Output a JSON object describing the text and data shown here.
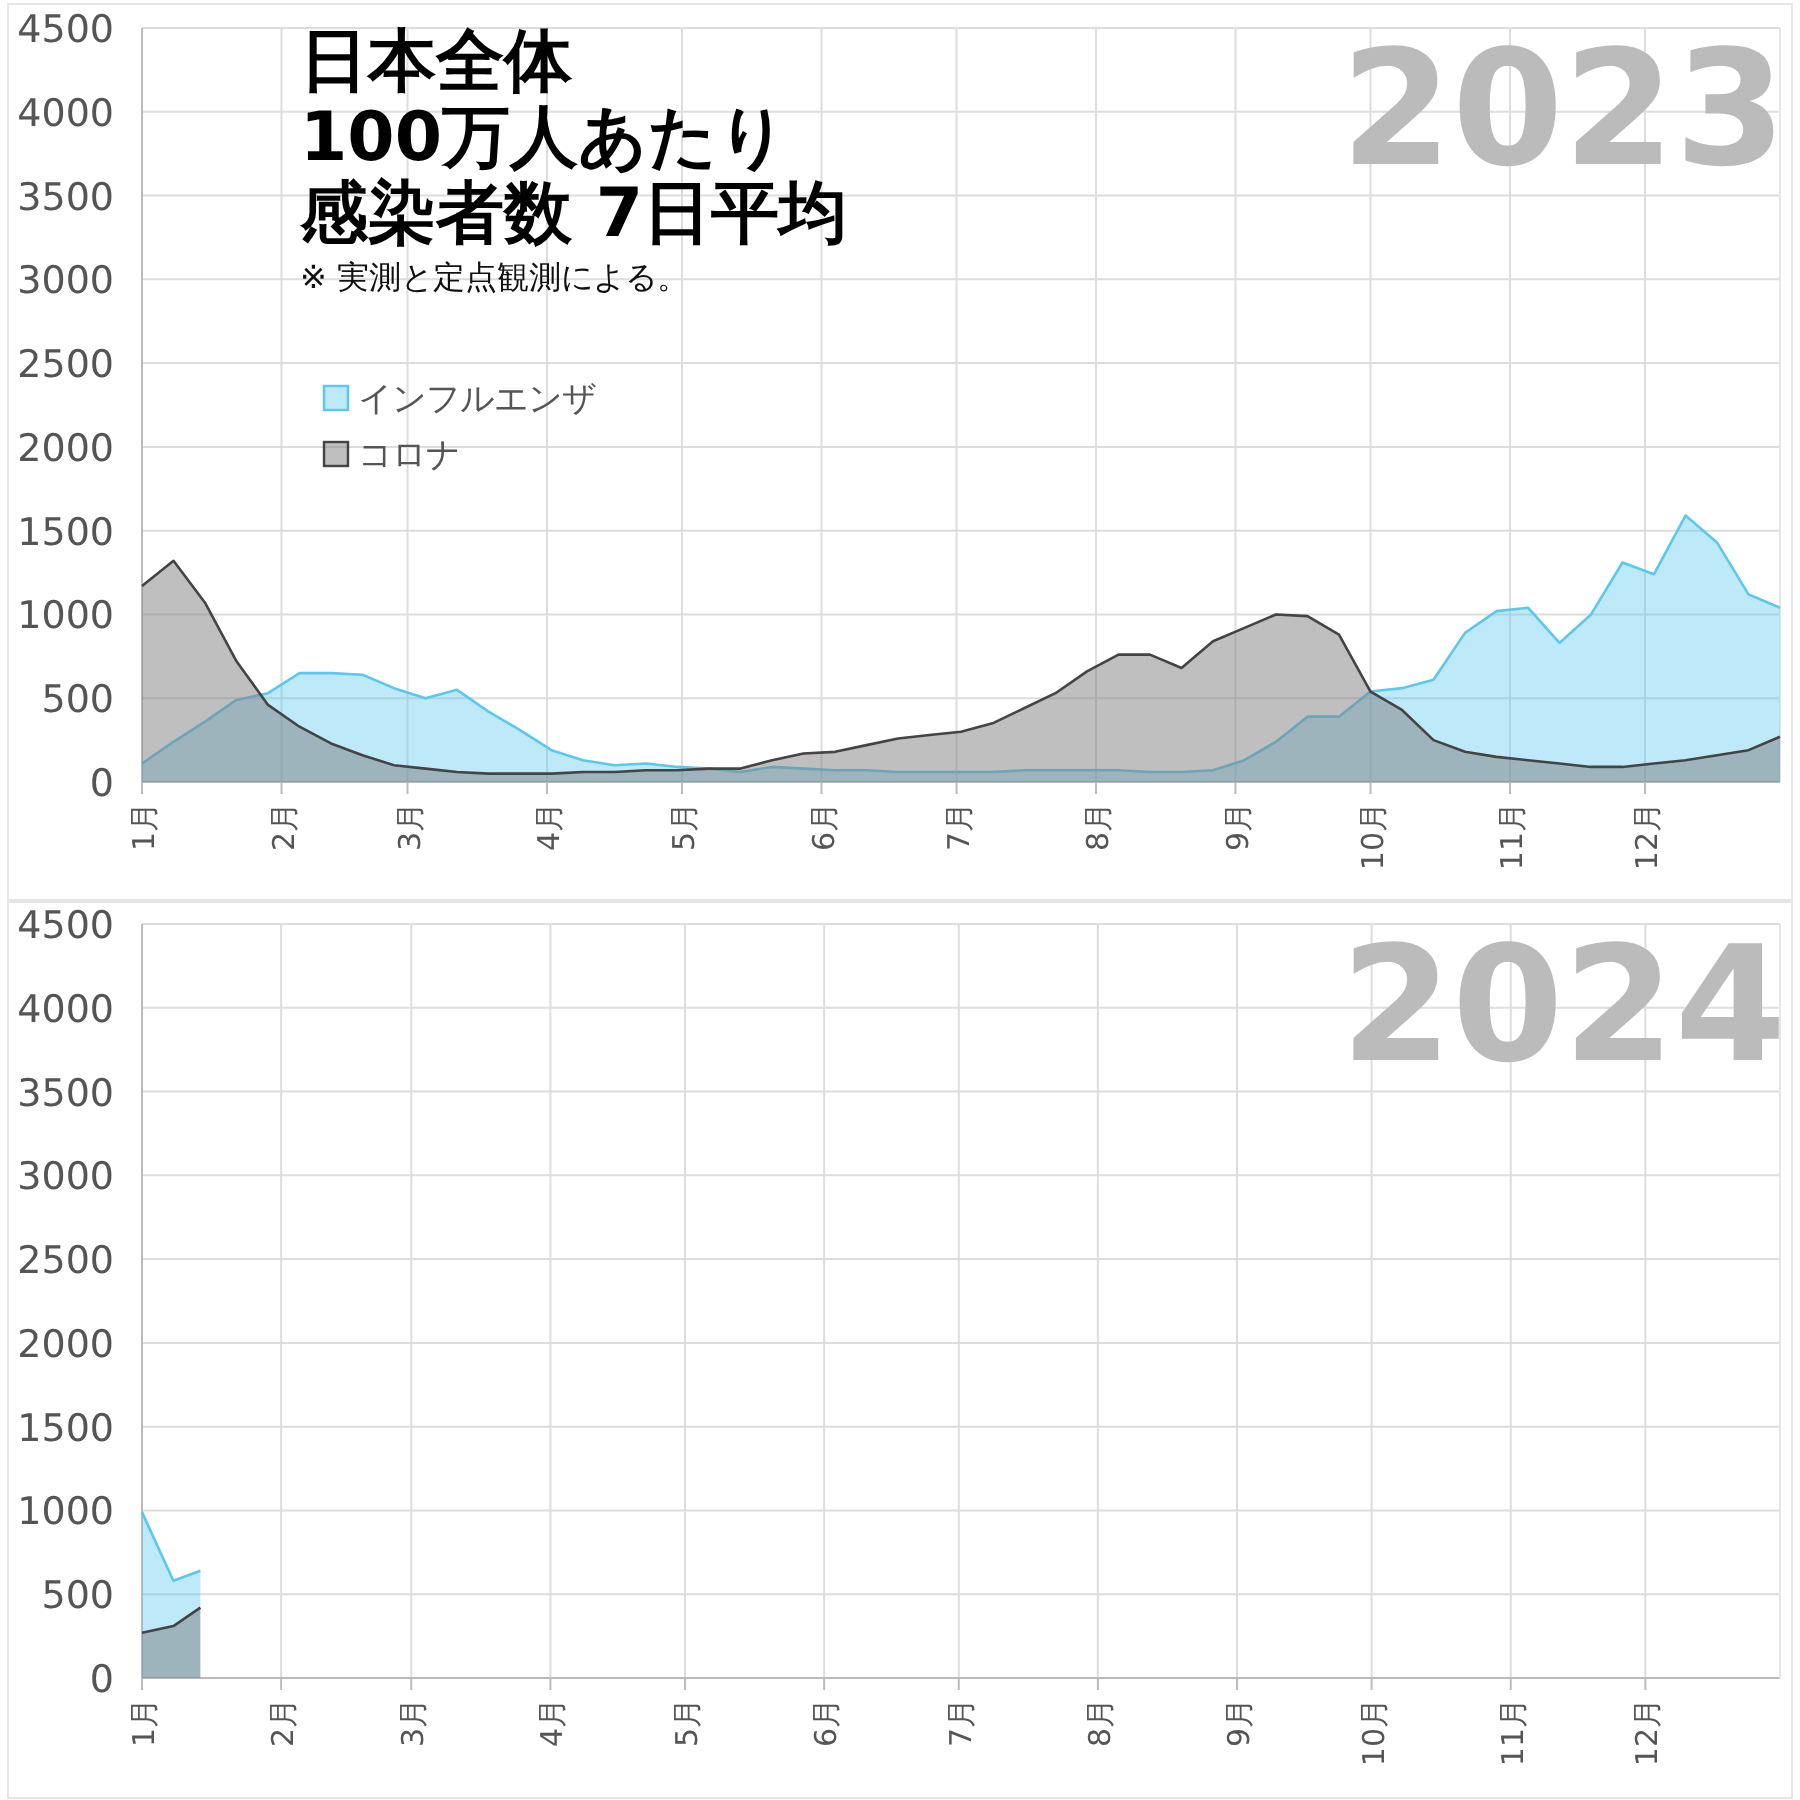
{
  "chart_data": [
    {
      "type": "area",
      "title": "日本全体",
      "subtitle": "100万人あたり",
      "annotations": [
        "感染者数 7日平均",
        "※ 実測と定点観測による。",
        "2023"
      ],
      "x": [
        "2023-01-01",
        "2023-01-08",
        "2023-01-15",
        "2023-01-22",
        "2023-01-29",
        "2023-02-05",
        "2023-02-12",
        "2023-02-19",
        "2023-02-26",
        "2023-03-05",
        "2023-03-12",
        "2023-03-19",
        "2023-03-26",
        "2023-04-02",
        "2023-04-09",
        "2023-04-16",
        "2023-04-23",
        "2023-04-30",
        "2023-05-07",
        "2023-05-14",
        "2023-05-21",
        "2023-05-28",
        "2023-06-04",
        "2023-06-11",
        "2023-06-18",
        "2023-06-25",
        "2023-07-02",
        "2023-07-09",
        "2023-07-16",
        "2023-07-23",
        "2023-07-30",
        "2023-08-06",
        "2023-08-13",
        "2023-08-20",
        "2023-08-27",
        "2023-09-03",
        "2023-09-10",
        "2023-09-17",
        "2023-09-24",
        "2023-10-01",
        "2023-10-08",
        "2023-10-15",
        "2023-10-22",
        "2023-10-29",
        "2023-11-05",
        "2023-11-12",
        "2023-11-19",
        "2023-11-26",
        "2023-12-03",
        "2023-12-10",
        "2023-12-17",
        "2023-12-24",
        "2023-12-31"
      ],
      "series": [
        {
          "name": "インフルエンザ",
          "color": "#5bc8ef",
          "values": [
            110,
            240,
            360,
            490,
            530,
            650,
            650,
            640,
            560,
            500,
            550,
            420,
            310,
            190,
            130,
            100,
            110,
            90,
            80,
            60,
            90,
            80,
            70,
            70,
            60,
            60,
            60,
            60,
            70,
            70,
            70,
            70,
            60,
            60,
            70,
            130,
            240,
            390,
            390,
            540,
            560,
            610,
            890,
            1020,
            1040,
            830,
            1000,
            1310,
            1240,
            1590,
            1430,
            1120,
            1040
          ]
        },
        {
          "name": "コロナ",
          "color": "#808080",
          "values": [
            1170,
            1320,
            1070,
            720,
            460,
            330,
            230,
            160,
            100,
            80,
            60,
            50,
            50,
            50,
            60,
            60,
            70,
            70,
            80,
            80,
            130,
            170,
            180,
            220,
            260,
            280,
            300,
            350,
            440,
            530,
            660,
            760,
            760,
            680,
            840,
            920,
            1000,
            990,
            880,
            540,
            430,
            250,
            180,
            150,
            130,
            110,
            90,
            90,
            110,
            130,
            160,
            190,
            270
          ]
        }
      ],
      "xlim": [
        "2023-01-01",
        "2023-12-31"
      ],
      "xticks": [
        {
          "value": "2023-01-01",
          "label": "1月"
        },
        {
          "value": "2023-02-01",
          "label": "2月"
        },
        {
          "value": "2023-03-01",
          "label": "3月"
        },
        {
          "value": "2023-04-01",
          "label": "4月"
        },
        {
          "value": "2023-05-01",
          "label": "5月"
        },
        {
          "value": "2023-06-01",
          "label": "6月"
        },
        {
          "value": "2023-07-01",
          "label": "7月"
        },
        {
          "value": "2023-08-01",
          "label": "8月"
        },
        {
          "value": "2023-09-01",
          "label": "9月"
        },
        {
          "value": "2023-10-01",
          "label": "10月"
        },
        {
          "value": "2023-11-01",
          "label": "11月"
        },
        {
          "value": "2023-12-01",
          "label": "12月"
        }
      ],
      "ylim": [
        0,
        4500
      ],
      "yticks": [
        0,
        500,
        1000,
        1500,
        2000,
        2500,
        3000,
        3500,
        4000,
        4500
      ],
      "grid": true,
      "legend": "left"
    },
    {
      "type": "area",
      "annotations": [
        "2024"
      ],
      "x": [
        "2024-01-01",
        "2024-01-08",
        "2024-01-14"
      ],
      "series": [
        {
          "color": "#5bc8ef",
          "values": [
            990,
            580,
            640
          ]
        },
        {
          "color": "#808080",
          "values": [
            270,
            310,
            420
          ]
        }
      ],
      "xlim": [
        "2024-01-01",
        "2024-12-31"
      ],
      "xticks": [
        {
          "value": "2024-01-01",
          "label": "1月"
        },
        {
          "value": "2024-02-01",
          "label": "2月"
        },
        {
          "value": "2024-03-01",
          "label": "3月"
        },
        {
          "value": "2024-04-01",
          "label": "4月"
        },
        {
          "value": "2024-05-01",
          "label": "5月"
        },
        {
          "value": "2024-06-01",
          "label": "6月"
        },
        {
          "value": "2024-07-01",
          "label": "7月"
        },
        {
          "value": "2024-08-01",
          "label": "8月"
        },
        {
          "value": "2024-09-01",
          "label": "9月"
        },
        {
          "value": "2024-10-01",
          "label": "10月"
        },
        {
          "value": "2024-11-01",
          "label": "11月"
        },
        {
          "value": "2024-12-01",
          "label": "12月"
        }
      ],
      "ylim": [
        0,
        4500
      ],
      "yticks": [
        0,
        500,
        1000,
        1500,
        2000,
        2500,
        3000,
        3500,
        4000,
        4500
      ],
      "grid": true
    }
  ]
}
